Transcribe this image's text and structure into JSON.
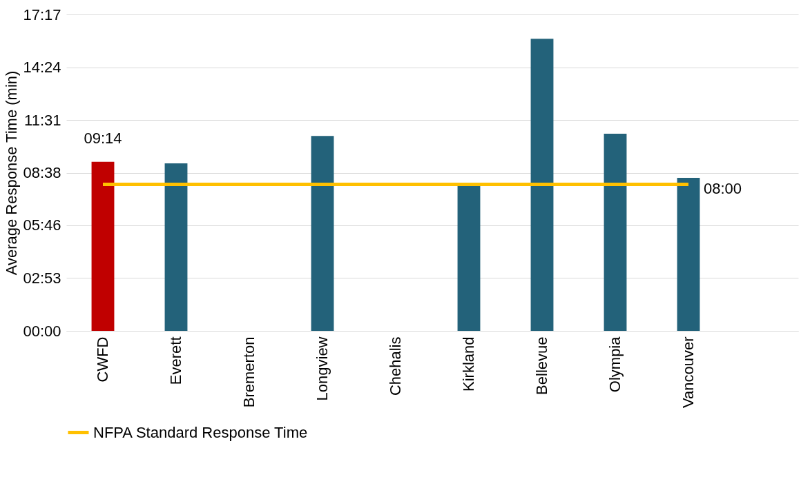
{
  "chart_data": {
    "type": "bar",
    "ylabel": "Average Response Time (min)",
    "categories": [
      "CWFD",
      "Everett",
      "Bremerton",
      "Longview",
      "Chehalis",
      "Kirkland",
      "Bellevue",
      "Olympia",
      "Vancouver",
      null
    ],
    "series": [
      {
        "colors": [
          "#c00000",
          "#23627a",
          "#23627a",
          "#23627a",
          "#23627a",
          "#23627a",
          "#23627a",
          "#23627a",
          "#23627a",
          "#23627a"
        ],
        "values": [
          9.23,
          9.15,
          null,
          10.65,
          null,
          7.98,
          15.96,
          10.77,
          8.36,
          null
        ],
        "value_labels": [
          "09:14",
          null,
          null,
          null,
          null,
          null,
          null,
          null,
          null,
          null
        ]
      },
      {
        "type": "line",
        "name": "NFPA Standard Response Time",
        "color": "#ffc000",
        "values": [
          8,
          8,
          8,
          8,
          8,
          8,
          8,
          8,
          8,
          null
        ],
        "value_labels": [
          null,
          null,
          null,
          null,
          null,
          null,
          null,
          null,
          "08:00",
          null
        ]
      }
    ],
    "ylim": [
      0,
      17.283
    ],
    "yticks": [
      {
        "value": 0,
        "label": "00:00"
      },
      {
        "value": 2.883,
        "label": "02:53"
      },
      {
        "value": 5.767,
        "label": "05:46"
      },
      {
        "value": 8.633,
        "label": "08:38"
      },
      {
        "value": 11.517,
        "label": "11:31"
      },
      {
        "value": 14.4,
        "label": "14:24"
      },
      {
        "value": 17.283,
        "label": "17:17"
      }
    ],
    "grid": "y",
    "legend": "bottom"
  }
}
